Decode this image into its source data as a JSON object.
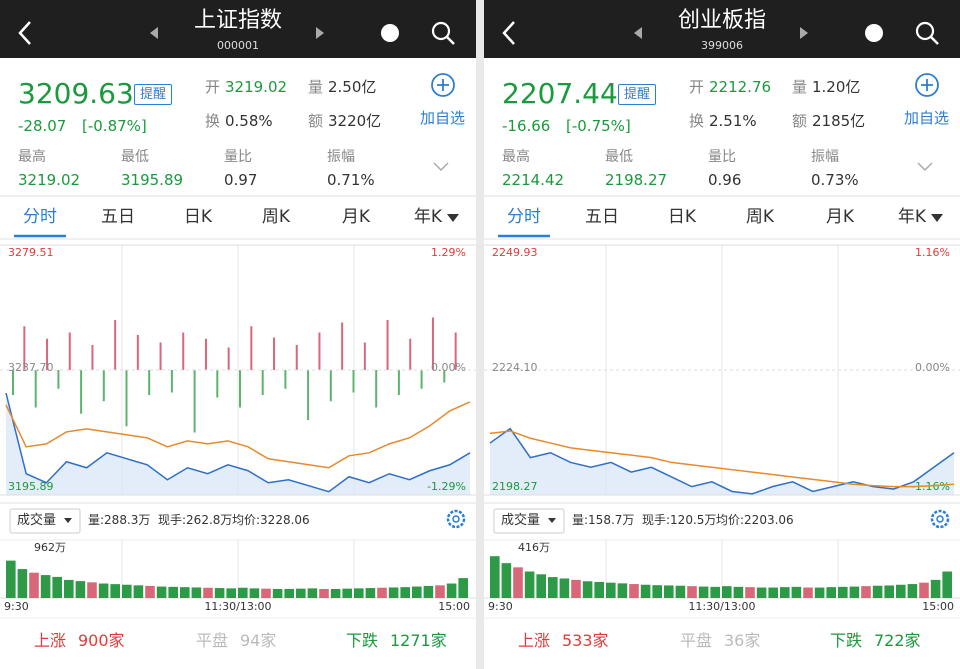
{
  "panels": [
    {
      "header": {
        "title": "上证指数",
        "code": "000001"
      },
      "quote": {
        "price": "3209.63",
        "remind": "提醒",
        "change": "-28.07",
        "change_pct": "[-0.87%]",
        "add": "加自选",
        "items": [
          {
            "label": "开",
            "value": "3219.02"
          },
          {
            "label": "量",
            "value": "2.50亿"
          },
          {
            "label": "换",
            "value": "0.58%"
          },
          {
            "label": "额",
            "value": "3220亿"
          }
        ]
      },
      "stats": [
        {
          "label": "最高",
          "value": "3219.02"
        },
        {
          "label": "最低",
          "value": "3195.89"
        },
        {
          "label": "量比",
          "value": "0.97"
        },
        {
          "label": "振幅",
          "value": "0.71%"
        }
      ],
      "tabs": [
        "分时",
        "五日",
        "日K",
        "周K",
        "月K",
        "年K"
      ],
      "chart": {
        "type": "line",
        "ylim": [
          3195.89,
          3279.51
        ],
        "yticks": [
          {
            "value": 3279.51,
            "label": "3279.51"
          },
          {
            "value": 3237.7,
            "label": "3237.70"
          },
          {
            "value": 3195.89,
            "label": "3195.89"
          }
        ],
        "y2lim": [
          -1.29,
          1.29
        ],
        "y2ticks": [
          {
            "value": 1.29,
            "label": "1.29%"
          },
          {
            "value": 0,
            "label": "0.00%"
          },
          {
            "value": -1.29,
            "label": "-1.29%"
          }
        ],
        "series": [
          {
            "color": "#2f6fc9",
            "values": [
              3230,
              3203,
              3200,
              3207,
              3205,
              3210,
              3208,
              3206,
              3201,
              3205,
              3203,
              3206,
              3204,
              3200,
              3201,
              3199,
              3197,
              3202,
              3200,
              3203,
              3201,
              3204,
              3206,
              3210
            ]
          },
          {
            "color": "#e8892c",
            "values": [
              3226,
              3212,
              3213,
              3217,
              3218,
              3217,
              3216,
              3215,
              3212,
              3214,
              3213,
              3214,
              3212,
              3208,
              3207,
              3206,
              3205,
              3209,
              3210,
              3213,
              3215,
              3219,
              3224,
              3227
            ]
          }
        ],
        "flow": {
          "ylim": [
            -100,
            100
          ],
          "values": [
            -20,
            35,
            -30,
            25,
            -15,
            30,
            -35,
            20,
            -25,
            40,
            -45,
            28,
            -20,
            22,
            -18,
            30,
            -50,
            25,
            -22,
            18,
            -30,
            35,
            -20,
            26,
            -15,
            20,
            -40,
            30,
            -25,
            38,
            -18,
            22,
            -30,
            40,
            -20,
            25,
            -15,
            42,
            -10,
            30
          ]
        }
      },
      "volume_info": {
        "selector": "成交量",
        "vol": "量:288.3万",
        "hand": "现手:262.8万",
        "avg": "均价:3228.06"
      },
      "volume_chart": {
        "type": "bar",
        "color": "#2e9a48",
        "ylim": [
          0,
          962
        ],
        "yticks": [
          {
            "value": 962,
            "label": "962万"
          }
        ],
        "values": [
          620,
          480,
          420,
          380,
          350,
          300,
          280,
          260,
          240,
          230,
          220,
          210,
          200,
          190,
          185,
          180,
          175,
          170,
          165,
          160,
          170,
          160,
          155,
          150,
          150,
          155,
          160,
          150,
          150,
          155,
          160,
          165,
          170,
          175,
          180,
          190,
          200,
          210,
          240,
          330
        ],
        "x_labels": [
          "9:30",
          "11:30/13:00",
          "15:00"
        ]
      },
      "footer": [
        {
          "label": "上涨",
          "value": "900家"
        },
        {
          "label": "平盘",
          "value": "94家"
        },
        {
          "label": "下跌",
          "value": "1271家"
        }
      ]
    },
    {
      "header": {
        "title": "创业板指",
        "code": "399006"
      },
      "quote": {
        "price": "2207.44",
        "remind": "提醒",
        "change": "-16.66",
        "change_pct": "[-0.75%]",
        "add": "加自选",
        "items": [
          {
            "label": "开",
            "value": "2212.76"
          },
          {
            "label": "量",
            "value": "1.20亿"
          },
          {
            "label": "换",
            "value": "2.51%"
          },
          {
            "label": "额",
            "value": "2185亿"
          }
        ]
      },
      "stats": [
        {
          "label": "最高",
          "value": "2214.42"
        },
        {
          "label": "最低",
          "value": "2198.27"
        },
        {
          "label": "量比",
          "value": "0.96"
        },
        {
          "label": "振幅",
          "value": "0.73%"
        }
      ],
      "tabs": [
        "分时",
        "五日",
        "日K",
        "周K",
        "月K",
        "年K"
      ],
      "chart": {
        "type": "line",
        "ylim": [
          2198.27,
          2249.93
        ],
        "yticks": [
          {
            "value": 2249.93,
            "label": "2249.93"
          },
          {
            "value": 2224.1,
            "label": "2224.10"
          },
          {
            "value": 2198.27,
            "label": "2198.27"
          }
        ],
        "y2lim": [
          -1.16,
          1.16
        ],
        "y2ticks": [
          {
            "value": 1.16,
            "label": "1.16%"
          },
          {
            "value": 0,
            "label": "0.00%"
          },
          {
            "value": -1.16,
            "label": "-1.16%"
          }
        ],
        "series": [
          {
            "color": "#2f6fc9",
            "values": [
              2209,
              2212,
              2206,
              2207,
              2205,
              2204,
              2205,
              2203,
              2204,
              2202,
              2200,
              2201,
              2199,
              2198.5,
              2200,
              2201,
              2199,
              2200,
              2201,
              2200,
              2199.5,
              2201,
              2204,
              2207
            ]
          },
          {
            "color": "#e8892c",
            "values": [
              2211,
              2211.5,
              2210,
              2209,
              2208,
              2207.5,
              2207,
              2206.5,
              2206,
              2205,
              2204.5,
              2204,
              2203.5,
              2203,
              2202.5,
              2202,
              2201.5,
              2201,
              2200.5,
              2200.2,
              2200,
              2200,
              2200.2,
              2200.5
            ]
          }
        ]
      },
      "volume_info": {
        "selector": "成交量",
        "vol": "量:158.7万",
        "hand": "现手:120.5万",
        "avg": "均价:2203.06"
      },
      "volume_chart": {
        "type": "bar",
        "color": "#2e9a48",
        "ylim": [
          0,
          416
        ],
        "yticks": [
          {
            "value": 416,
            "label": "416万"
          }
        ],
        "values": [
          300,
          250,
          220,
          190,
          170,
          150,
          140,
          130,
          120,
          115,
          110,
          105,
          100,
          95,
          92,
          90,
          88,
          85,
          82,
          80,
          85,
          80,
          78,
          75,
          75,
          78,
          80,
          75,
          75,
          78,
          80,
          82,
          85,
          88,
          90,
          95,
          100,
          110,
          130,
          190
        ],
        "x_labels": [
          "9:30",
          "11:30/13:00",
          "15:00"
        ]
      },
      "footer": [
        {
          "label": "上涨",
          "value": "533家"
        },
        {
          "label": "平盘",
          "value": "36家"
        },
        {
          "label": "下跌",
          "value": "722家"
        }
      ]
    }
  ]
}
